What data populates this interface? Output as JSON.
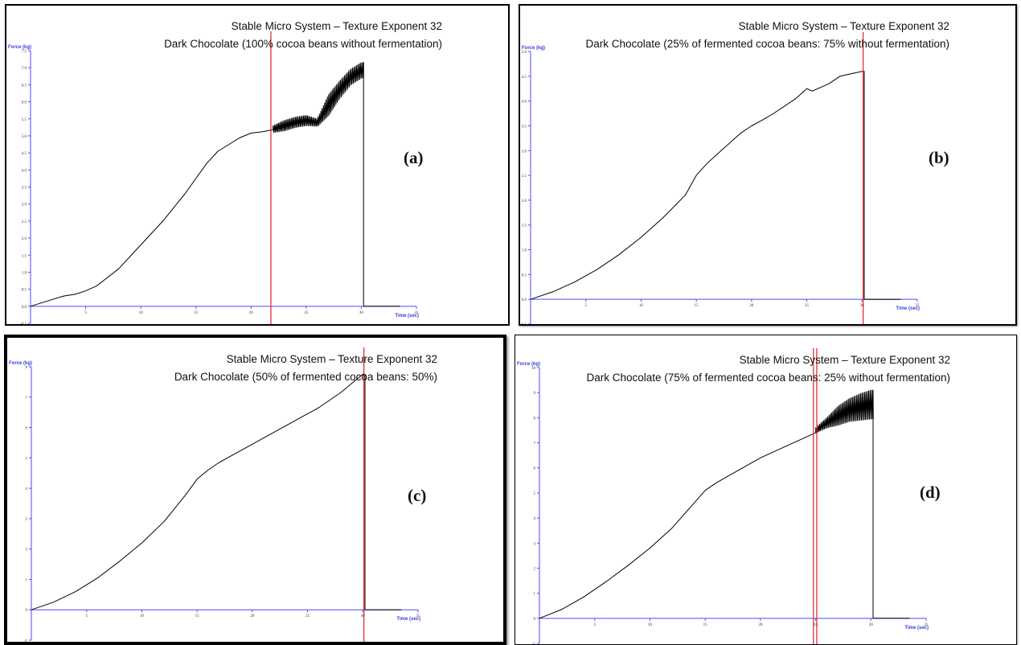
{
  "colors": {
    "axis": "#4a4aff",
    "axis_text": "#3a3adf",
    "trace": "#000000",
    "marker": "#e02020"
  },
  "chart_data": [
    {
      "type": "line",
      "panel_label": "(a)",
      "title": "Stable Micro System – Texture Exponent 32",
      "subtitle": "Dark Chocolate (100% cocoa beans without fermentation)",
      "ylabel": "Force (kg)",
      "xlabel": "Time (sec)",
      "xlim": [
        0,
        35
      ],
      "ylim": [
        -0.5,
        7.5
      ],
      "xticks": [
        "5",
        "10",
        "15",
        "20",
        "25",
        "30",
        "35"
      ],
      "yticks": [
        "-0.5",
        "0.0",
        "0.5",
        "1.0",
        "1.5",
        "2.0",
        "2.5",
        "3.0",
        "3.5",
        "4.0",
        "4.5",
        "5.0",
        "5.5",
        "6.0",
        "6.5",
        "7.0",
        "7.5"
      ],
      "x": [
        0,
        2,
        3,
        4,
        5,
        6,
        8,
        10,
        12,
        14,
        16,
        17,
        18,
        19,
        20,
        21,
        22
      ],
      "y": [
        0.0,
        0.2,
        0.3,
        0.35,
        0.45,
        0.6,
        1.1,
        1.8,
        2.5,
        3.3,
        4.2,
        4.55,
        4.75,
        4.95,
        5.08,
        5.12,
        5.18
      ],
      "oscillation": {
        "x": [
          22,
          23,
          24,
          25,
          26,
          27,
          28,
          29,
          30,
          30.2
        ],
        "low": [
          5.1,
          5.15,
          5.25,
          5.3,
          5.28,
          5.6,
          6.1,
          6.5,
          6.7,
          6.7
        ],
        "high": [
          5.3,
          5.45,
          5.55,
          5.6,
          5.5,
          6.2,
          6.6,
          6.95,
          7.15,
          7.15
        ]
      },
      "drop_x": 30.2,
      "markers_x": [
        21.8
      ]
    },
    {
      "type": "line",
      "panel_label": "(b)",
      "title": "Stable Micro System – Texture Exponent 32",
      "subtitle": "Dark Chocolate (25% of fermented cocoa beans:  75% without fermentation)",
      "ylabel": "Force (kg)",
      "xlabel": "Time (sec)",
      "xlim": [
        0,
        35
      ],
      "ylim": [
        -0.5,
        5.0
      ],
      "xticks": [
        "5",
        "10",
        "15",
        "20",
        "25",
        "30",
        "35"
      ],
      "yticks": [
        "-0.5",
        "0.0",
        "0.5",
        "1.0",
        "1.5",
        "2.0",
        "2.5",
        "3.0",
        "3.5",
        "4.0",
        "4.5",
        "5.0"
      ],
      "x": [
        0,
        2,
        4,
        6,
        8,
        10,
        12,
        14,
        15,
        16,
        17,
        18,
        19,
        20,
        21,
        22,
        23,
        24,
        25,
        25.5,
        26,
        27,
        28,
        29,
        30
      ],
      "y": [
        0.0,
        0.15,
        0.35,
        0.6,
        0.9,
        1.25,
        1.65,
        2.1,
        2.5,
        2.75,
        2.95,
        3.15,
        3.35,
        3.5,
        3.62,
        3.75,
        3.9,
        4.05,
        4.25,
        4.2,
        4.25,
        4.35,
        4.5,
        4.55,
        4.6
      ],
      "drop_x": 30.2,
      "markers_x": [
        30.1
      ]
    },
    {
      "type": "line",
      "panel_label": "(c)",
      "title": "Stable Micro System – Texture Exponent 32",
      "subtitle": "Dark Chocolate (50% of fermented cocoa beans:  50%)",
      "ylabel": "Force (kg)",
      "xlabel": "Time (sec)",
      "xlim": [
        0,
        35
      ],
      "ylim": [
        -1,
        8
      ],
      "xticks": [
        "5",
        "10",
        "15",
        "20",
        "25",
        "30",
        "35"
      ],
      "yticks": [
        "-1",
        "0",
        "1",
        "2",
        "3",
        "4",
        "5",
        "6",
        "7",
        "8"
      ],
      "x": [
        0,
        2,
        4,
        6,
        8,
        10,
        12,
        14,
        15,
        16,
        17,
        18,
        20,
        22,
        24,
        26,
        28,
        29,
        30
      ],
      "y": [
        0.0,
        0.25,
        0.6,
        1.05,
        1.6,
        2.2,
        2.9,
        3.8,
        4.3,
        4.6,
        4.85,
        5.05,
        5.45,
        5.85,
        6.25,
        6.65,
        7.15,
        7.45,
        7.75
      ],
      "drop_x": 30.2,
      "markers_x": [
        30.1
      ]
    },
    {
      "type": "line",
      "panel_label": "(d)",
      "title": "Stable Micro System – Texture Exponent 32",
      "subtitle": "Dark Chocolate (75% of fermented cocoa beans:  25% without fermentation)",
      "ylabel": "Force (kg)",
      "xlabel": "Time (sec)",
      "xlim": [
        0,
        35
      ],
      "ylim": [
        -1,
        10
      ],
      "xticks": [
        "5",
        "10",
        "15",
        "20",
        "25",
        "30",
        "35"
      ],
      "yticks": [
        "-1",
        "0",
        "1",
        "2",
        "3",
        "4",
        "5",
        "6",
        "7",
        "8",
        "9",
        "10"
      ],
      "x": [
        0,
        2,
        4,
        6,
        8,
        10,
        12,
        14,
        15,
        16,
        17,
        18,
        20,
        22,
        24,
        25
      ],
      "y": [
        0.0,
        0.35,
        0.85,
        1.45,
        2.1,
        2.8,
        3.6,
        4.6,
        5.1,
        5.4,
        5.65,
        5.9,
        6.4,
        6.8,
        7.2,
        7.4
      ],
      "oscillation": {
        "x": [
          25,
          26,
          27,
          28,
          29,
          30,
          30.2
        ],
        "low": [
          7.4,
          7.6,
          7.7,
          7.85,
          7.9,
          7.95,
          7.95
        ],
        "high": [
          7.6,
          8.0,
          8.45,
          8.75,
          8.95,
          9.1,
          9.1
        ]
      },
      "drop_x": 30.2,
      "markers_x": [
        24.8,
        25.1
      ]
    }
  ]
}
